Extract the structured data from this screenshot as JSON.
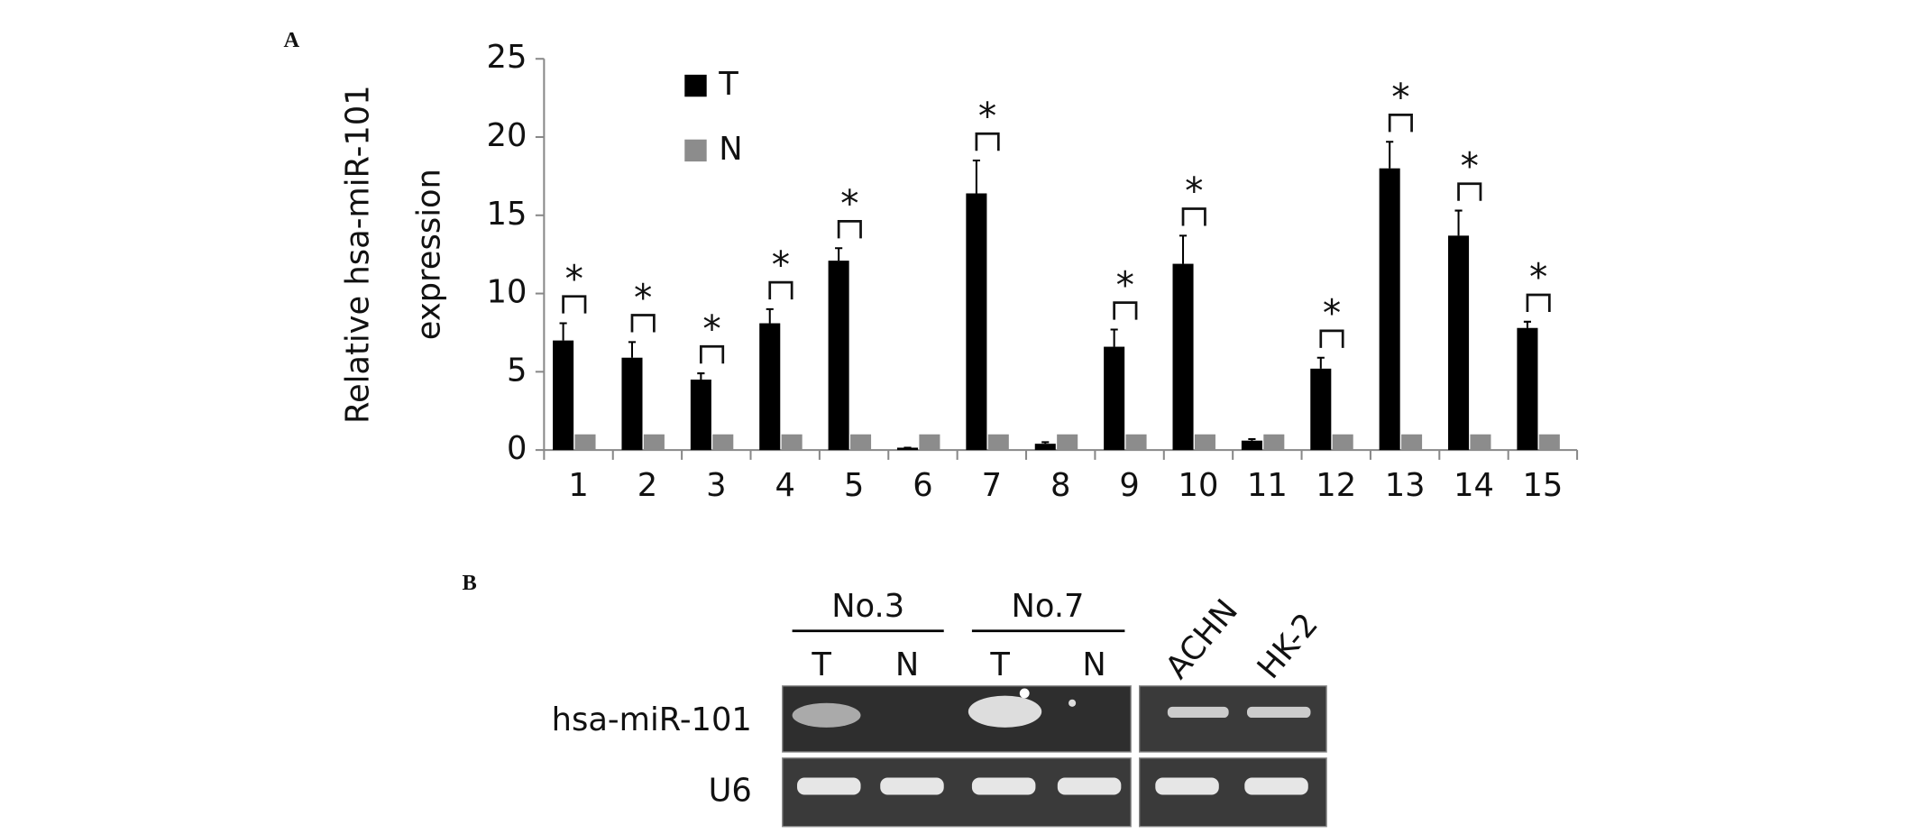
{
  "panel_labels": [
    "A",
    "B"
  ],
  "chart_data": {
    "type": "bar",
    "ylabel": [
      "Relative hsa-miR-101",
      "expression"
    ],
    "categories": [
      "1",
      "2",
      "3",
      "4",
      "5",
      "6",
      "7",
      "8",
      "9",
      "10",
      "11",
      "12",
      "13",
      "14",
      "15"
    ],
    "series": [
      {
        "name": "T",
        "color": "#000000",
        "values": [
          7.0,
          5.9,
          4.5,
          8.1,
          12.1,
          0.15,
          16.4,
          0.4,
          6.6,
          11.9,
          0.6,
          5.2,
          18.0,
          13.7,
          7.8
        ],
        "errors": [
          1.1,
          1.0,
          0.4,
          0.9,
          0.8,
          0,
          2.1,
          0.1,
          1.1,
          1.8,
          0.1,
          0.7,
          1.7,
          1.6,
          0.4
        ]
      },
      {
        "name": "N",
        "color": "#8c8c8c",
        "values": [
          1,
          1,
          1,
          1,
          1,
          1,
          1,
          1,
          1,
          1,
          1,
          1,
          1,
          1,
          1
        ]
      }
    ],
    "significance": [
      "*",
      "*",
      "*",
      "*",
      "*",
      null,
      "*",
      null,
      "*",
      "*",
      null,
      "*",
      "*",
      "*",
      "*"
    ],
    "ylim": [
      0,
      25
    ],
    "yticks": [
      0,
      5,
      10,
      15,
      20,
      25
    ],
    "legend": "top-left"
  },
  "gel": {
    "groups": [
      "No.3",
      "No.7"
    ],
    "lanes": [
      "T",
      "N",
      "T",
      "N"
    ],
    "cell_lines": [
      "ACHN",
      "HK-2"
    ],
    "rows": [
      "hsa-miR-101",
      "U6"
    ]
  }
}
